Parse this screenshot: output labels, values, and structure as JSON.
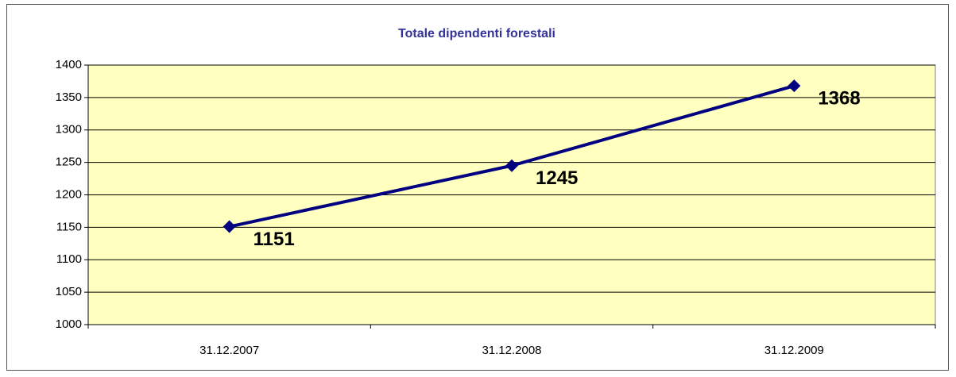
{
  "chart_data": {
    "type": "line",
    "title": "Totale dipendenti forestali",
    "categories": [
      "31.12.2007",
      "31.12.2008",
      "31.12.2009"
    ],
    "series": [
      {
        "name": "Totale dipendenti forestali",
        "color": "#000080",
        "values": [
          1151,
          1245,
          1368
        ]
      }
    ],
    "ylim": [
      1000,
      1400
    ],
    "yticks": [
      1000,
      1050,
      1100,
      1150,
      1200,
      1250,
      1300,
      1350,
      1400
    ],
    "grid": true,
    "plot_background": "#ffffc0"
  }
}
